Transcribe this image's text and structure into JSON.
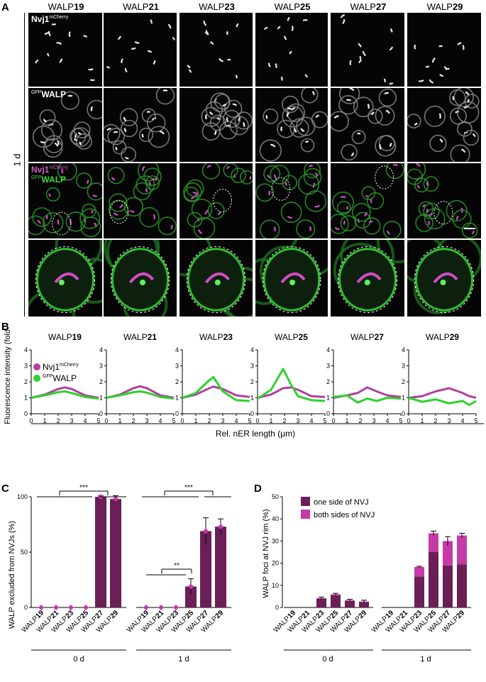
{
  "panelA": {
    "letter": "A",
    "columns": [
      {
        "prefix": "WALP",
        "num": "19"
      },
      {
        "prefix": "WALP",
        "num": "21"
      },
      {
        "prefix": "WALP",
        "num": "23"
      },
      {
        "prefix": "WALP",
        "num": "25"
      },
      {
        "prefix": "WALP",
        "num": "27"
      },
      {
        "prefix": "WALP",
        "num": "29"
      }
    ],
    "rows": [
      {
        "tag_main": "Nvj1",
        "tag_sup": "mCherry"
      },
      {
        "tag_sup": "GFP",
        "tag_main": "WALP"
      },
      {
        "tag_main": "Nvj1",
        "tag_sup": "mCherry",
        "tag2_sup": "GFP",
        "tag2_main": "WALP"
      },
      {}
    ],
    "time_label": "1 d"
  },
  "panelB": {
    "letter": "B",
    "ylabel": "Fluorescence intensity (fold)",
    "xlabel": "Rel. nER length (μm)",
    "legend": [
      {
        "main": "Nvj1",
        "sup": "mCherry",
        "color": "#b0419c"
      },
      {
        "main": "WALP",
        "sup": "GFP",
        "color": "#2fd12f"
      }
    ]
  },
  "panelC": {
    "letter": "C",
    "ylabel": "WALP excluded from NVJs (%)",
    "sig": [
      "***",
      "***",
      "**"
    ]
  },
  "panelD": {
    "letter": "D",
    "ylabel": "WALP foci at NVJ rim (%)",
    "legend": [
      {
        "label": "one side of NVJ",
        "color": "#6b1f57"
      },
      {
        "label": "both sides of NVJ",
        "color": "#c63aa8"
      }
    ]
  },
  "chart_data": [
    {
      "type": "line",
      "title": "WALP19",
      "xlabel": "Rel. nER length (μm)",
      "ylabel": "Fluorescence intensity (fold)",
      "x": [
        0,
        1,
        2,
        2.5,
        3,
        4,
        5
      ],
      "xlim": [
        0,
        5
      ],
      "ylim": [
        0,
        4
      ],
      "series": [
        {
          "name": "Nvj1 mCherry",
          "values": [
            1.0,
            1.2,
            1.55,
            1.65,
            1.55,
            1.15,
            1.0
          ]
        },
        {
          "name": "GFP WALP",
          "values": [
            1.0,
            1.15,
            1.35,
            1.4,
            1.3,
            1.05,
            0.95
          ]
        }
      ]
    },
    {
      "type": "line",
      "title": "WALP21",
      "x": [
        0,
        1,
        2,
        2.5,
        3,
        4,
        5
      ],
      "xlim": [
        0,
        5
      ],
      "ylim": [
        0,
        4
      ],
      "series": [
        {
          "name": "Nvj1 mCherry",
          "values": [
            1.0,
            1.2,
            1.6,
            1.72,
            1.6,
            1.15,
            1.0
          ]
        },
        {
          "name": "GFP WALP",
          "values": [
            1.0,
            1.15,
            1.35,
            1.4,
            1.32,
            1.05,
            0.95
          ]
        }
      ]
    },
    {
      "type": "line",
      "title": "WALP23",
      "x": [
        0,
        1,
        2,
        2.3,
        3,
        4,
        5
      ],
      "xlim": [
        0,
        5
      ],
      "ylim": [
        0,
        4
      ],
      "series": [
        {
          "name": "Nvj1 mCherry",
          "values": [
            1.0,
            1.2,
            1.6,
            1.7,
            1.55,
            1.15,
            1.05
          ]
        },
        {
          "name": "GFP WALP",
          "values": [
            1.0,
            1.3,
            2.1,
            2.3,
            1.4,
            0.85,
            0.8
          ]
        }
      ]
    },
    {
      "type": "line",
      "title": "WALP25",
      "x": [
        0,
        1,
        1.9,
        2.5,
        3,
        4,
        5
      ],
      "xlim": [
        0,
        5
      ],
      "ylim": [
        0,
        4
      ],
      "series": [
        {
          "name": "Nvj1 mCherry",
          "values": [
            1.0,
            1.2,
            1.6,
            1.65,
            1.5,
            1.1,
            1.05
          ]
        },
        {
          "name": "GFP WALP",
          "values": [
            0.95,
            1.5,
            2.8,
            1.8,
            1.1,
            0.85,
            0.8
          ]
        }
      ]
    },
    {
      "type": "line",
      "title": "WALP27",
      "x": [
        0,
        1,
        1.8,
        2.5,
        3.2,
        4,
        5
      ],
      "xlim": [
        0,
        5
      ],
      "ylim": [
        0,
        4
      ],
      "series": [
        {
          "name": "Nvj1 mCherry",
          "values": [
            1.0,
            1.15,
            1.3,
            1.65,
            1.4,
            1.15,
            1.05
          ]
        },
        {
          "name": "GFP WALP",
          "values": [
            1.05,
            1.15,
            0.7,
            0.95,
            0.8,
            1.0,
            0.95
          ]
        }
      ]
    },
    {
      "type": "line",
      "title": "WALP29",
      "x": [
        0,
        1,
        2,
        3,
        4,
        4.5,
        5
      ],
      "xlim": [
        0,
        5
      ],
      "ylim": [
        0,
        4
      ],
      "series": [
        {
          "name": "Nvj1 mCherry",
          "values": [
            1.0,
            1.1,
            1.4,
            1.6,
            1.3,
            1.1,
            1.0
          ]
        },
        {
          "name": "GFP WALP",
          "values": [
            1.0,
            0.75,
            0.9,
            0.65,
            0.8,
            0.55,
            0.8
          ]
        }
      ]
    },
    {
      "type": "bar",
      "ylabel": "WALP excluded from NVJs (%)",
      "ylim": [
        0,
        100
      ],
      "groups": [
        {
          "label": "0 d",
          "categories": [
            "WALP19",
            "WALP21",
            "WALP23",
            "WALP25",
            "WALP27",
            "WALP29"
          ],
          "values": [
            0,
            0,
            0,
            0,
            100,
            98
          ],
          "err": [
            0,
            0,
            0,
            0,
            1,
            3
          ]
        },
        {
          "label": "1 d",
          "categories": [
            "WALP19",
            "WALP21",
            "WALP23",
            "WALP25",
            "WALP27",
            "WALP29"
          ],
          "values": [
            0,
            0,
            0,
            19,
            69,
            73
          ],
          "err": [
            0,
            0,
            0,
            7,
            12,
            7
          ]
        }
      ]
    },
    {
      "type": "bar",
      "stacked": true,
      "ylabel": "WALP foci at NVJ rim (%)",
      "ylim": [
        0,
        50
      ],
      "legend_position": "top-left",
      "groups": [
        {
          "label": "0 d",
          "categories": [
            "WALP19",
            "WALP21",
            "WALP23",
            "WALP25",
            "WALP27",
            "WALP29"
          ],
          "series": [
            {
              "name": "one side of NVJ",
              "values": [
                0,
                0,
                4,
                5.5,
                3,
                2.5
              ]
            },
            {
              "name": "both sides of NVJ",
              "values": [
                0,
                0,
                0.2,
                0.5,
                0.3,
                0.2
              ]
            }
          ],
          "total_err": [
            0,
            0,
            0.5,
            0.4,
            0.4,
            0.6
          ]
        },
        {
          "label": "1 d",
          "categories": [
            "WALP19",
            "WALP21",
            "WALP23",
            "WALP25",
            "WALP27",
            "WALP29"
          ],
          "series": [
            {
              "name": "one side of NVJ",
              "values": [
                0,
                0,
                14,
                25,
                19,
                19.5
              ]
            },
            {
              "name": "both sides of NVJ",
              "values": [
                0,
                0,
                4.3,
                8.5,
                11,
                13
              ]
            }
          ],
          "total_err": [
            0,
            0,
            0.3,
            1,
            2,
            1
          ]
        }
      ]
    }
  ]
}
